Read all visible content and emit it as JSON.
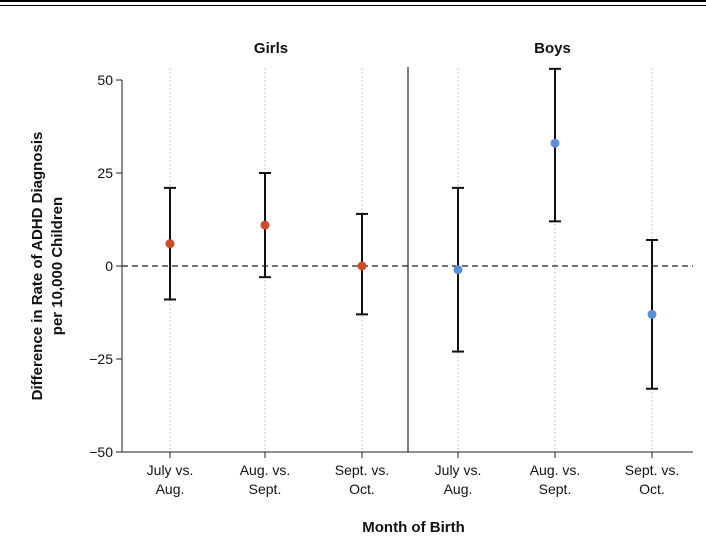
{
  "chart_data": {
    "type": "scatter",
    "ylabel_line1": "Difference in Rate of ADHD Diagnosis",
    "ylabel_line2": "per 10,000 Children",
    "xlabel": "Month of Birth",
    "ylim": [
      -50,
      50
    ],
    "yticks": [
      50,
      25,
      0,
      -25,
      -50
    ],
    "ytick_labels": [
      "50",
      "25",
      "0",
      "−25",
      "−50"
    ],
    "categories": [
      {
        "line1": "July vs.",
        "line2": "Aug."
      },
      {
        "line1": "Aug. vs.",
        "line2": "Sept."
      },
      {
        "line1": "Sept. vs.",
        "line2": "Oct."
      }
    ],
    "reference_line": 0,
    "grid": "dotted vertical",
    "panels": [
      {
        "name": "Girls",
        "color": "#d04a2c",
        "points": [
          {
            "estimate": 6,
            "lower": -9,
            "upper": 21
          },
          {
            "estimate": 11,
            "lower": -3,
            "upper": 25
          },
          {
            "estimate": 0,
            "lower": -13,
            "upper": 14
          }
        ]
      },
      {
        "name": "Boys",
        "color": "#5b8fd6",
        "points": [
          {
            "estimate": -1,
            "lower": -23,
            "upper": 21
          },
          {
            "estimate": 33,
            "lower": 12,
            "upper": 53
          },
          {
            "estimate": -13,
            "lower": -33,
            "upper": 7
          }
        ]
      }
    ]
  }
}
